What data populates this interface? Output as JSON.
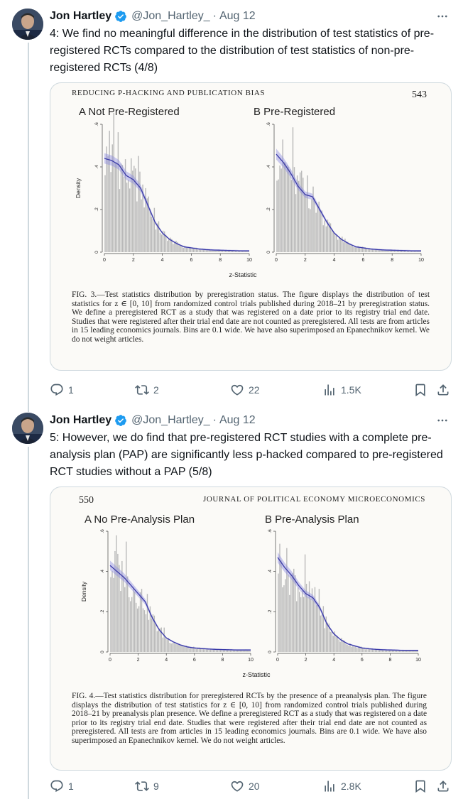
{
  "tweets": [
    {
      "author_name": "Jon Hartley",
      "handle": "@Jon_Hartley_",
      "date": "Aug 12",
      "text": "4: We find no meaningful difference in the distribution of test statistics of pre-registered RCTs compared to the distribution of test statistics of non-pre-registered RCTs (4/8)",
      "stats": {
        "replies": "1",
        "reposts": "2",
        "likes": "22",
        "views": "1.5K"
      },
      "figure": {
        "header_left": "REDUCING P-HACKING AND PUBLICATION BIAS",
        "header_right": "543",
        "panel_a_title": "A  Not Pre-Registered",
        "panel_b_title": "B  Pre-Registered",
        "ylabel": "Density",
        "xlabel": "z-Statistic",
        "caption": "FIG. 3.—Test statistics distribution by preregistration status. The figure displays the distribution of test statistics for z ∈ [0, 10] from randomized control trials published during 2018–21 by preregistration status. We define a preregistered RCT as a study that was registered on a date prior to its registry trial end date. Studies that were registered after their trial end date are not counted as preregistered. All tests are from articles in 15 leading economics journals. Bins are 0.1 wide. We have also superimposed an Epanechnikov kernel. We do not weight articles."
      }
    },
    {
      "author_name": "Jon Hartley",
      "handle": "@Jon_Hartley_",
      "date": "Aug 12",
      "text": "5: However, we do find that pre-registered RCT studies with a complete pre-analysis plan (PAP) are significantly less p-hacked compared to pre-registered RCT studies without a PAP (5/8)",
      "stats": {
        "replies": "1",
        "reposts": "9",
        "likes": "20",
        "views": "2.8K"
      },
      "figure": {
        "header_left": "550",
        "header_right": "JOURNAL OF POLITICAL ECONOMY MICROECONOMICS",
        "panel_a_title": "A  No Pre-Analysis Plan",
        "panel_b_title": "B  Pre-Analysis Plan",
        "ylabel": "Density",
        "xlabel": "z-Statistic",
        "caption": "FIG. 4.—Test statistics distribution for preregistered RCTs by the presence of a preanalysis plan. The figure displays the distribution of test statistics for z ∈ [0, 10] from randomized control trials published during 2018–21 by preanalysis plan presence. We define a preregistered RCT as a study that was registered on a date prior to its registry trial end date. Studies that were registered after their trial end date are not counted as preregistered. All tests are from articles in 15 leading economics journals. Bins are 0.1 wide. We have also superimposed an Epanechnikov kernel. We do not weight articles."
      }
    }
  ],
  "chart_data": [
    {
      "type": "bar",
      "title": "Not Pre-Registered",
      "xlabel": "z-Statistic",
      "ylabel": "Density",
      "xlim": [
        0,
        10
      ],
      "ylim": [
        0,
        0.6
      ],
      "x_ticks": [
        0,
        2,
        4,
        6,
        8,
        10
      ],
      "y_ticks": [
        0,
        0.2,
        0.4,
        0.6
      ],
      "bin_width": 0.1,
      "kernel": [
        0.44,
        0.43,
        0.41,
        0.36,
        0.34,
        0.3,
        0.22,
        0.14,
        0.09,
        0.06,
        0.04,
        0.025,
        0.02,
        0.015,
        0.012,
        0.01,
        0.009,
        0.008,
        0.007,
        0.006,
        0.006
      ]
    },
    {
      "type": "bar",
      "title": "Pre-Registered",
      "xlabel": "z-Statistic",
      "ylabel": "Density",
      "xlim": [
        0,
        10
      ],
      "ylim": [
        0,
        0.6
      ],
      "x_ticks": [
        0,
        2,
        4,
        6,
        8,
        10
      ],
      "y_ticks": [
        0,
        0.2,
        0.4,
        0.6
      ],
      "bin_width": 0.1,
      "kernel": [
        0.46,
        0.42,
        0.37,
        0.31,
        0.27,
        0.26,
        0.2,
        0.14,
        0.09,
        0.06,
        0.04,
        0.025,
        0.02,
        0.015,
        0.012,
        0.01,
        0.009,
        0.008,
        0.007,
        0.006,
        0.006
      ]
    },
    {
      "type": "bar",
      "title": "No Pre-Analysis Plan",
      "xlabel": "z-Statistic",
      "ylabel": "Density",
      "xlim": [
        0,
        10
      ],
      "ylim": [
        0,
        0.6
      ],
      "x_ticks": [
        0,
        2,
        4,
        6,
        8,
        10
      ],
      "y_ticks": [
        0,
        0.2,
        0.4,
        0.6
      ],
      "bin_width": 0.1,
      "kernel": [
        0.43,
        0.4,
        0.37,
        0.33,
        0.29,
        0.25,
        0.17,
        0.11,
        0.07,
        0.05,
        0.035,
        0.025,
        0.02,
        0.017,
        0.015,
        0.013,
        0.012,
        0.011,
        0.01,
        0.01,
        0.01
      ]
    },
    {
      "type": "bar",
      "title": "Pre-Analysis Plan",
      "xlabel": "z-Statistic",
      "ylabel": "Density",
      "xlim": [
        0,
        10
      ],
      "ylim": [
        0,
        0.6
      ],
      "x_ticks": [
        0,
        2,
        4,
        6,
        8,
        10
      ],
      "y_ticks": [
        0,
        0.2,
        0.4,
        0.6
      ],
      "bin_width": 0.1,
      "kernel": [
        0.47,
        0.42,
        0.38,
        0.33,
        0.29,
        0.27,
        0.22,
        0.14,
        0.09,
        0.06,
        0.04,
        0.03,
        0.02,
        0.016,
        0.013,
        0.011,
        0.01,
        0.009,
        0.008,
        0.008,
        0.008
      ]
    }
  ]
}
